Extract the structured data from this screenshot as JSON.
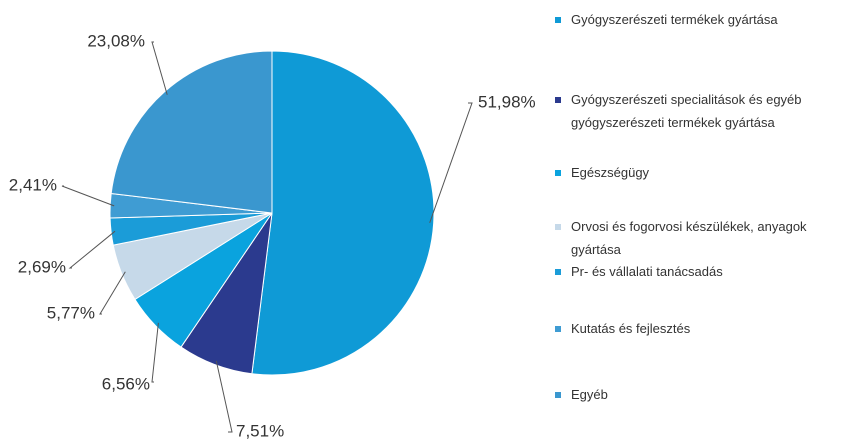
{
  "chart_data": {
    "type": "pie",
    "categories": [
      "Gyógyszerészeti termékek gyártása",
      "Gyógyszerészeti specialitások és egyéb gyógyszerészeti termékek gyártása",
      "Egészségügy",
      "Orvosi és fogorvosi készülékek, anyagok gyártása",
      "Pr- és vállalati tanácsadás",
      "Kutatás és fejlesztés",
      "Egyéb"
    ],
    "values": [
      51.98,
      7.51,
      6.56,
      5.77,
      2.69,
      2.41,
      23.08
    ],
    "value_labels": [
      "51,98%",
      "7,51%",
      "6,56%",
      "5,77%",
      "2,69%",
      "2,41%",
      "23,08%"
    ],
    "colors": [
      "#0f9ad6",
      "#2b3a8e",
      "#0aa3de",
      "#c6d9e9",
      "#1b9cd8",
      "#3f9cd3",
      "#3a97cf"
    ],
    "legend": "right"
  }
}
